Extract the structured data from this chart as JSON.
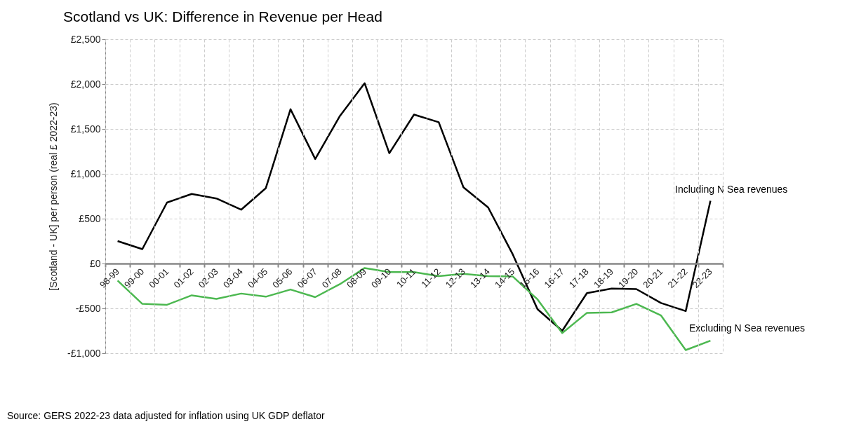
{
  "chart_data": {
    "type": "line",
    "title": "Scotland vs UK: Difference in Revenue per Head",
    "ylabel": "[Scotland - UK] per person (real £ 2022-23)",
    "categories": [
      "98-99",
      "99-00",
      "00-01",
      "01-02",
      "02-03",
      "03-04",
      "04-05",
      "05-06",
      "06-07",
      "07-08",
      "08-09",
      "09-10",
      "10-11",
      "11-12",
      "12-13",
      "13-14",
      "14-15",
      "15-16",
      "16-17",
      "17-18",
      "18-19",
      "19-20",
      "20-21",
      "21-22",
      "22-23"
    ],
    "series": [
      {
        "name": "Including N Sea revenues",
        "color": "#000000",
        "values": [
          250,
          160,
          680,
          775,
          725,
          600,
          840,
          1720,
          1165,
          1645,
          2010,
          1230,
          1660,
          1575,
          850,
          625,
          100,
          -510,
          -750,
          -330,
          -280,
          -285,
          -440,
          -530,
          700
        ]
      },
      {
        "name": "Excluding N Sea revenues",
        "color": "#4cb850",
        "values": [
          -190,
          -450,
          -460,
          -355,
          -395,
          -335,
          -370,
          -290,
          -375,
          -230,
          -50,
          -95,
          -95,
          -140,
          -115,
          -140,
          -145,
          -400,
          -775,
          -550,
          -545,
          -450,
          -580,
          -965,
          -860
        ]
      }
    ],
    "ylim": [
      -1000,
      2500
    ],
    "yticks": [
      {
        "value": -1000,
        "label": "-£1,000"
      },
      {
        "value": -500,
        "label": "-£500"
      },
      {
        "value": 0,
        "label": "£0"
      },
      {
        "value": 500,
        "label": "£500"
      },
      {
        "value": 1000,
        "label": "£1,000"
      },
      {
        "value": 1500,
        "label": "£1,500"
      },
      {
        "value": 2000,
        "label": "£2,000"
      },
      {
        "value": 2500,
        "label": "£2,500"
      }
    ],
    "grid": true,
    "legend": false,
    "marker": "none",
    "line_style": "solid",
    "annotations": [
      "Source: GERS 2022-23 data adjusted for inflation using UK GDP deflator"
    ]
  }
}
